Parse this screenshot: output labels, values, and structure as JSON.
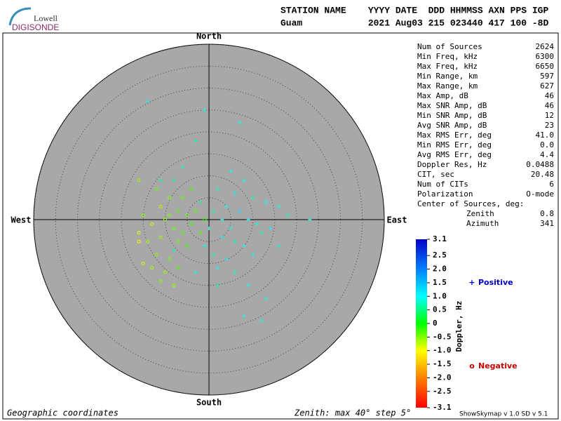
{
  "header": {
    "logo_top": "Lowell",
    "logo_bottom": "DIGISONDE",
    "line1": "STATION NAME    YYYY DATE  DDD HHMMSS AXN PPS IGP",
    "line2": "Guam            2021 Aug03 215 023440 417 100 -8D"
  },
  "stats": [
    {
      "label": "Num of Sources",
      "value": "2624"
    },
    {
      "label": "Min Freq, kHz",
      "value": "6300"
    },
    {
      "label": "Max Freq, kHz",
      "value": "6650"
    },
    {
      "label": "Min Range, km",
      "value": "597"
    },
    {
      "label": "Max Range, km",
      "value": "627"
    },
    {
      "label": "Max Amp, dB",
      "value": "46"
    },
    {
      "label": "Max SNR Amp, dB",
      "value": "46"
    },
    {
      "label": "Min SNR Amp, dB",
      "value": "12"
    },
    {
      "label": "Avg SNR Amp, dB",
      "value": "23"
    },
    {
      "label": "Max RMS Err, deg",
      "value": "41.0"
    },
    {
      "label": "Min RMS Err, deg",
      "value": "0.0"
    },
    {
      "label": "Avg RMS Err, deg",
      "value": "4.4"
    },
    {
      "label": "Doppler Res, Hz",
      "value": "0.0488"
    },
    {
      "label": "CIT, sec",
      "value": "20.48"
    },
    {
      "label": "Num of CITs",
      "value": "6"
    },
    {
      "label": "Polarization",
      "value": "O-mode"
    }
  ],
  "center": {
    "title": "Center of Sources, deg:",
    "zenith_label": "Zenith",
    "zenith": "0.8",
    "azimuth_label": "Azimuth",
    "azimuth": "341"
  },
  "footer": {
    "left": "Geographic coordinates",
    "center": "Zenith: max 40°  step 5°",
    "right": "ShowSkymap v 1.0  SD v 5.1"
  },
  "chart_data": {
    "type": "skymap",
    "directions": {
      "north": "North",
      "south": "South",
      "east": "East",
      "west": "West"
    },
    "xlim": [
      -40,
      40
    ],
    "ylim": [
      -40,
      40
    ],
    "rings": [
      5,
      10,
      15,
      20,
      25,
      30,
      35,
      40
    ],
    "series": [
      {
        "name": "Positive",
        "marker": "+",
        "color": "#0000cc",
        "x": [
          -14,
          -1,
          7,
          -3,
          5,
          8,
          -8,
          2,
          6,
          10,
          13,
          16,
          18,
          23,
          4,
          7,
          9,
          11,
          12,
          14,
          5,
          3,
          6,
          8,
          10,
          4,
          1,
          -1,
          2,
          6,
          9,
          13,
          8,
          12,
          2,
          -3,
          -8,
          3,
          1,
          -2,
          0,
          16,
          -6,
          -11
        ],
        "y": [
          27,
          25,
          22,
          18,
          11,
          9,
          9,
          7,
          6,
          5,
          4,
          3,
          1,
          0,
          3,
          2,
          0,
          -1,
          -3,
          -2,
          -2,
          -4,
          -5,
          -6,
          -8,
          -9,
          -8,
          -6,
          -11,
          -12,
          -15,
          -18,
          -22,
          -23,
          -15,
          -12,
          -7,
          0,
          2,
          4,
          -2,
          -6,
          12,
          9
        ],
        "doppler": [
          0.9,
          1.0,
          0.9,
          0.8,
          1.0,
          0.9,
          0.7,
          0.8,
          1.1,
          0.8,
          1.0,
          0.9,
          0.8,
          0.9,
          1.0,
          1.2,
          1.0,
          0.9,
          0.8,
          1.0,
          0.9,
          1.1,
          0.8,
          1.0,
          0.9,
          1.1,
          0.8,
          0.9,
          1.0,
          0.8,
          1.0,
          0.9,
          1.0,
          0.9,
          0.8,
          0.9,
          0.7,
          0.9,
          0.8,
          0.7,
          0.9,
          0.8,
          0.8,
          0.7
        ]
      },
      {
        "name": "Negative",
        "marker": "o",
        "color": "#cc0000",
        "x": [
          -16,
          -12,
          -9,
          -11,
          -7,
          -5,
          -10,
          -13,
          -15,
          -8,
          -6,
          -4,
          -3,
          -11,
          -14,
          -16,
          -12,
          -9,
          -10,
          -7,
          -5,
          -2,
          -1,
          -6,
          -4,
          -15,
          -11,
          -8,
          -16,
          -13,
          -9,
          -7
        ],
        "y": [
          9,
          7,
          5,
          3,
          2,
          1,
          0,
          -1,
          1,
          -2,
          -3,
          -1,
          2,
          -4,
          -5,
          -3,
          -8,
          -9,
          -12,
          -11,
          -6,
          -3,
          0,
          5,
          7,
          -10,
          -14,
          -15,
          -5,
          -11,
          1,
          -5
        ],
        "doppler": [
          -0.6,
          -0.4,
          -0.5,
          -0.7,
          -0.3,
          -0.4,
          -0.6,
          -0.8,
          -0.5,
          -0.4,
          -0.3,
          -0.2,
          -0.3,
          -0.6,
          -0.7,
          -0.9,
          -0.5,
          -0.4,
          -0.6,
          -0.3,
          -0.2,
          -0.3,
          -0.2,
          -0.4,
          -0.3,
          -0.8,
          -0.5,
          -0.6,
          -1.0,
          -0.7,
          -0.5,
          -0.4
        ]
      }
    ],
    "colorbar": {
      "label": "Doppler, Hz",
      "lim": [
        -3.1,
        3.1
      ],
      "ticks": [
        3.1,
        2.5,
        {
          "value": 2,
          "label": "2.0"
        },
        1.5,
        {
          "value": 1,
          "label": "1.0"
        },
        0.5,
        0,
        -0.5,
        {
          "value": -1,
          "label": "-1.0"
        },
        -1.5,
        {
          "value": -2,
          "label": "-2.0"
        },
        -2.5,
        -3.1
      ]
    }
  }
}
